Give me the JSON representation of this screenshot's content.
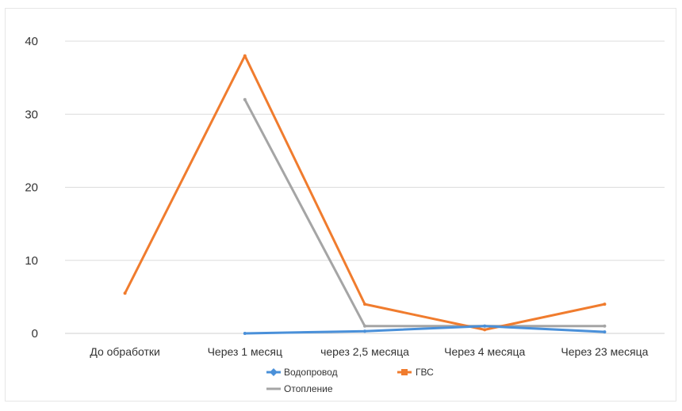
{
  "chart_data": {
    "type": "line",
    "categories": [
      "До обработки",
      "Через 1 месяц",
      "через 2,5 месяца",
      "Через 4 месяца",
      "Через 23 месяца"
    ],
    "ylim": [
      0,
      40
    ],
    "yticks": [
      0,
      10,
      20,
      30,
      40
    ],
    "grid": true,
    "legend_position": "bottom",
    "series": [
      {
        "name": "Водопровод",
        "color": "#4a90d9",
        "marker": "diamond",
        "values": [
          null,
          0,
          0.3,
          1.0,
          0.2
        ]
      },
      {
        "name": "ГВС",
        "color": "#f07c2e",
        "marker": "square",
        "values": [
          5.5,
          38,
          4.0,
          0.5,
          4.0
        ]
      },
      {
        "name": "Отопление",
        "color": "#a5a5a5",
        "marker": "dash",
        "values": [
          null,
          32,
          1.0,
          1.0,
          1.0
        ]
      }
    ]
  }
}
